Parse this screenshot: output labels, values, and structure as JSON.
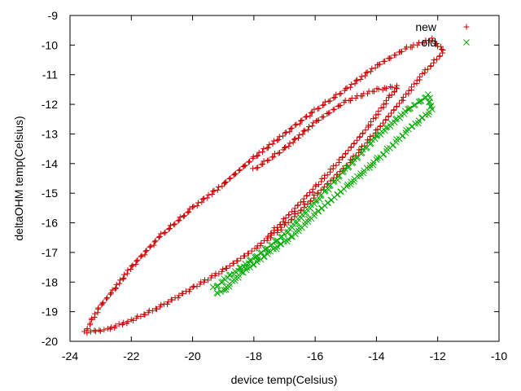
{
  "chart_data": {
    "type": "scatter",
    "title": "",
    "xlabel": "device temp(Celsius)",
    "ylabel": "deltaOHM temp(Celsius)",
    "xlim": [
      -24,
      -10
    ],
    "ylim": [
      -20,
      -9
    ],
    "xticks": [
      -24,
      -22,
      -20,
      -18,
      -16,
      -14,
      -12,
      -10
    ],
    "yticks": [
      -20,
      -19,
      -18,
      -17,
      -16,
      -15,
      -14,
      -13,
      -12,
      -11,
      -10,
      -9
    ],
    "grid": false,
    "legend_position": "top-right",
    "series": [
      {
        "name": "new",
        "marker": "plus",
        "color": "#cc0000",
        "path_points": [
          [
            -23.5,
            -19.7
          ],
          [
            -23.3,
            -19.3
          ],
          [
            -23.0,
            -18.8
          ],
          [
            -22.6,
            -18.3
          ],
          [
            -22.0,
            -17.5
          ],
          [
            -21.0,
            -16.4
          ],
          [
            -20.0,
            -15.5
          ],
          [
            -19.0,
            -14.7
          ],
          [
            -18.0,
            -13.8
          ],
          [
            -17.0,
            -13.0
          ],
          [
            -16.0,
            -12.2
          ],
          [
            -15.0,
            -11.5
          ],
          [
            -14.0,
            -10.7
          ],
          [
            -13.0,
            -10.1
          ],
          [
            -12.2,
            -9.8
          ],
          [
            -11.8,
            -10.2
          ],
          [
            -12.5,
            -11.0
          ],
          [
            -13.2,
            -11.9
          ],
          [
            -14.0,
            -12.9
          ],
          [
            -15.0,
            -14.1
          ],
          [
            -16.0,
            -15.1
          ],
          [
            -17.0,
            -16.1
          ],
          [
            -18.0,
            -16.9
          ],
          [
            -19.0,
            -17.6
          ],
          [
            -20.0,
            -18.2
          ],
          [
            -21.0,
            -18.8
          ],
          [
            -22.0,
            -19.3
          ],
          [
            -22.8,
            -19.6
          ],
          [
            -23.5,
            -19.7
          ]
        ],
        "inner_points": [
          [
            -18.0,
            -14.2
          ],
          [
            -17.0,
            -13.5
          ],
          [
            -16.0,
            -12.6
          ],
          [
            -15.0,
            -11.9
          ],
          [
            -14.0,
            -11.5
          ],
          [
            -13.3,
            -11.4
          ],
          [
            -13.6,
            -11.8
          ],
          [
            -14.3,
            -12.8
          ],
          [
            -15.2,
            -13.9
          ],
          [
            -16.0,
            -14.8
          ],
          [
            -17.0,
            -15.9
          ],
          [
            -17.6,
            -16.5
          ]
        ]
      },
      {
        "name": "old",
        "marker": "x",
        "color": "#00aa00",
        "path_points": [
          [
            -19.3,
            -18.2
          ],
          [
            -18.8,
            -17.8
          ],
          [
            -18.0,
            -17.2
          ],
          [
            -17.0,
            -16.4
          ],
          [
            -16.0,
            -15.3
          ],
          [
            -15.0,
            -14.2
          ],
          [
            -14.0,
            -13.1
          ],
          [
            -13.0,
            -12.2
          ],
          [
            -12.3,
            -11.7
          ],
          [
            -12.2,
            -12.2
          ],
          [
            -13.0,
            -12.9
          ],
          [
            -14.0,
            -13.9
          ],
          [
            -15.0,
            -14.8
          ],
          [
            -16.0,
            -15.7
          ],
          [
            -16.8,
            -16.5
          ],
          [
            -17.5,
            -17.0
          ],
          [
            -18.4,
            -17.7
          ],
          [
            -19.0,
            -18.3
          ],
          [
            -19.3,
            -18.4
          ]
        ]
      }
    ]
  },
  "colors": {
    "axis": "#000000",
    "background": "#ffffff"
  }
}
